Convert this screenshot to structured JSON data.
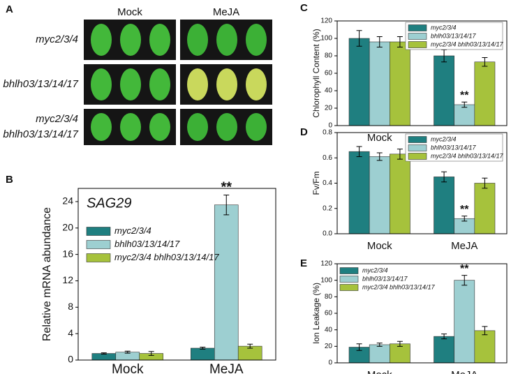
{
  "panel_a": {
    "panel": "A",
    "columns": [
      "Mock",
      "MeJA"
    ],
    "rows": [
      [
        "myc2/3/4"
      ],
      [
        "bhlh03/13/14/17"
      ],
      [
        "myc2/3/4",
        "bhlh03/13/14/17"
      ]
    ]
  },
  "chart_data": [
    {
      "type": "bar",
      "panel": "B",
      "title": "SAG29",
      "ylabel": "Relative mRNA abundance",
      "annotation": "**",
      "categories": [
        "Mock",
        "MeJA"
      ],
      "ylim": [
        0,
        26
      ],
      "yticks": [
        0,
        4,
        8,
        12,
        16,
        20,
        24
      ],
      "legend": "upper left",
      "series": [
        {
          "name": "myc2/3/4",
          "color": "#1f7f80",
          "values": [
            1.0,
            1.8
          ],
          "errors": [
            0.1,
            0.15
          ]
        },
        {
          "name": "bhlh03/13/14/17",
          "color": "#9dcfd1",
          "values": [
            1.2,
            23.5
          ],
          "errors": [
            0.15,
            1.5
          ]
        },
        {
          "name": "myc2/3/4 bhlh03/13/14/17",
          "color": "#a6c23c",
          "values": [
            1.0,
            2.1
          ],
          "errors": [
            0.3,
            0.3
          ]
        }
      ]
    },
    {
      "type": "bar",
      "panel": "C",
      "ylabel": "Chlorophyll Content (%)",
      "annotation": "**",
      "categories": [
        "Mock",
        "MeJA"
      ],
      "ylim": [
        0,
        120
      ],
      "yticks": [
        0,
        20,
        40,
        60,
        80,
        100,
        120
      ],
      "legend": "upper right",
      "series": [
        {
          "name": "myc2/3/4",
          "color": "#1f7f80",
          "values": [
            100,
            80
          ],
          "errors": [
            9,
            7
          ]
        },
        {
          "name": "bhlh03/13/14/17",
          "color": "#9dcfd1",
          "values": [
            96,
            24
          ],
          "errors": [
            6,
            3
          ]
        },
        {
          "name": "myc2/3/4 bhlh03/13/14/17",
          "color": "#a6c23c",
          "values": [
            96,
            73
          ],
          "errors": [
            6,
            5
          ]
        }
      ]
    },
    {
      "type": "bar",
      "panel": "D",
      "ylabel": "Fv/Fm",
      "annotation": "**",
      "categories": [
        "Mock",
        "MeJA"
      ],
      "ylim": [
        0,
        0.8
      ],
      "yticks": [
        {
          "value": 0,
          "label": "0.0"
        },
        0.2,
        0.4,
        0.6,
        0.8
      ],
      "legend": "upper right",
      "series": [
        {
          "name": "myc2/3/4",
          "color": "#1f7f80",
          "values": [
            0.65,
            0.45
          ],
          "errors": [
            0.04,
            0.04
          ]
        },
        {
          "name": "bhlh03/13/14/17",
          "color": "#9dcfd1",
          "values": [
            0.61,
            0.12
          ],
          "errors": [
            0.03,
            0.02
          ]
        },
        {
          "name": "myc2/3/4 bhlh03/13/14/17",
          "color": "#a6c23c",
          "values": [
            0.63,
            0.4
          ],
          "errors": [
            0.04,
            0.04
          ]
        }
      ]
    },
    {
      "type": "bar",
      "panel": "E",
      "ylabel": "Ion Leakage (%)",
      "annotation": "**",
      "categories": [
        "Mock",
        "MeJA"
      ],
      "ylim": [
        0,
        120
      ],
      "yticks": [
        0,
        20,
        40,
        60,
        80,
        100,
        120
      ],
      "legend": "upper left",
      "series": [
        {
          "name": "myc2/3/4",
          "color": "#1f7f80",
          "values": [
            19,
            32
          ],
          "errors": [
            4,
            3
          ]
        },
        {
          "name": "bhlh03/13/14/17",
          "color": "#9dcfd1",
          "values": [
            22,
            100
          ],
          "errors": [
            2,
            6
          ]
        },
        {
          "name": "myc2/3/4 bhlh03/13/14/17",
          "color": "#a6c23c",
          "values": [
            23,
            39
          ],
          "errors": [
            3,
            5
          ]
        }
      ]
    }
  ]
}
